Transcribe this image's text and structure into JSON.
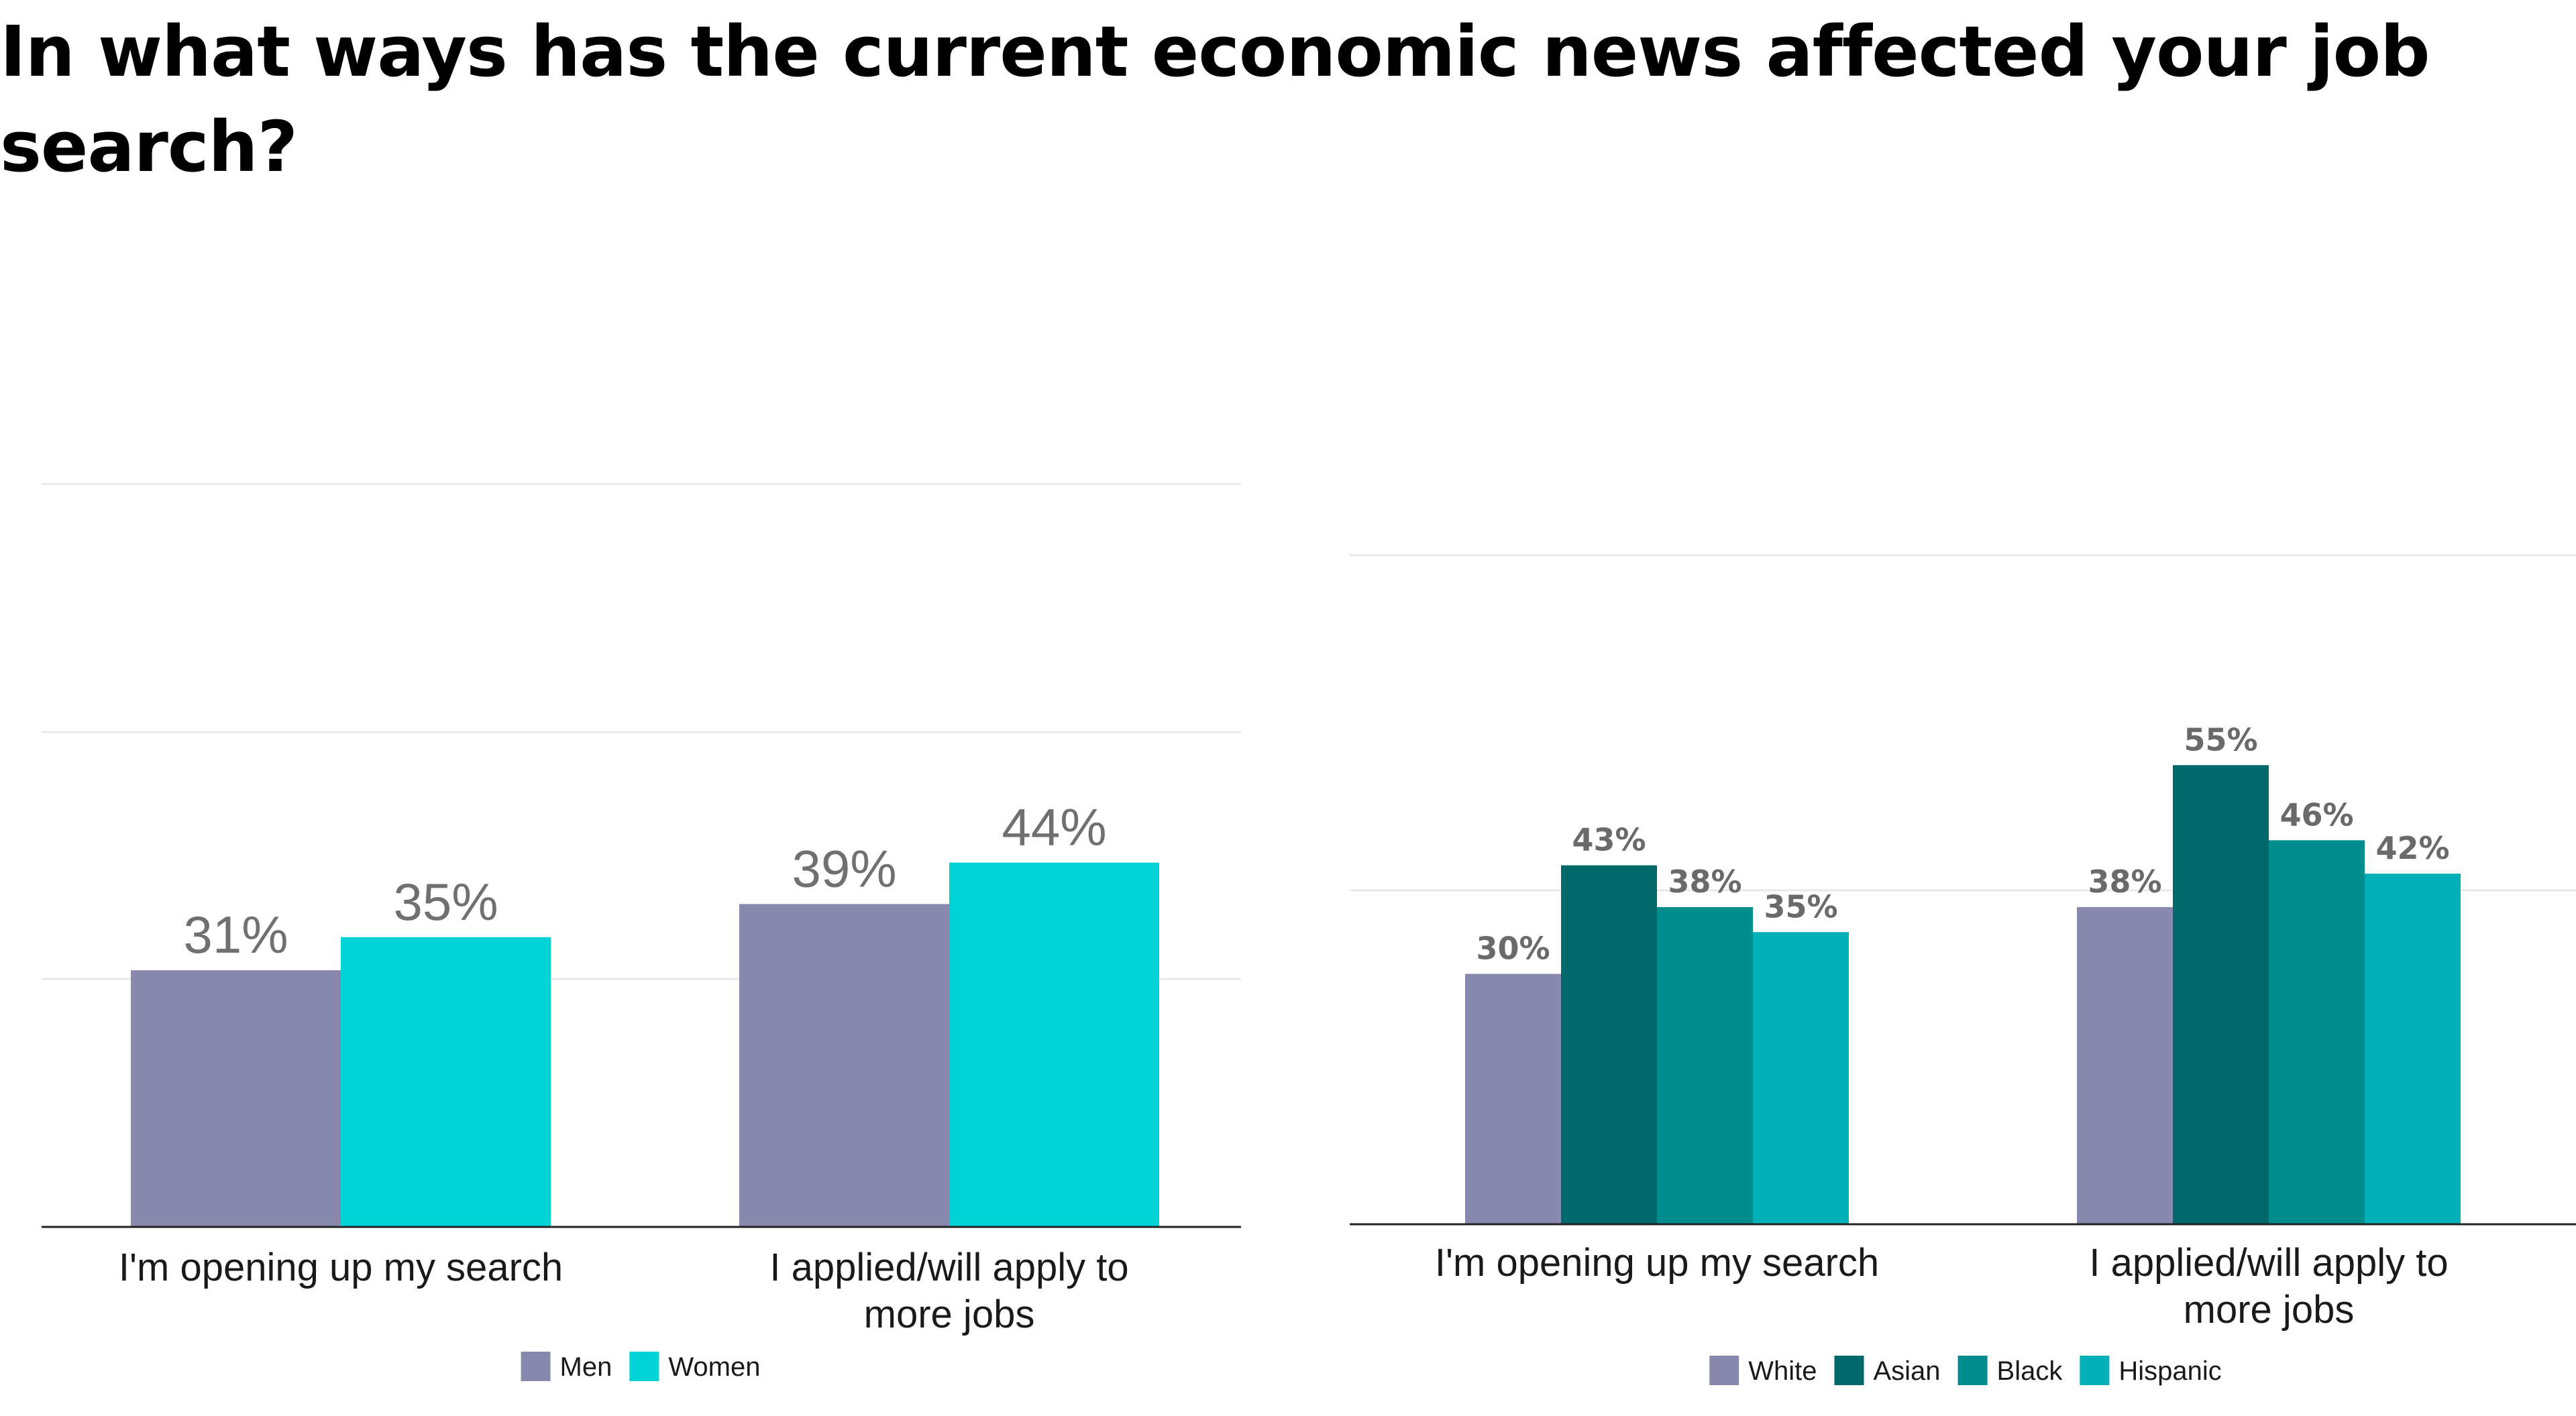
{
  "title": "In what ways has the current economic news affected your job search?",
  "chart_data": [
    {
      "type": "bar",
      "title": "",
      "categories": [
        "I'm opening up my search",
        "I applied/will apply to more jobs"
      ],
      "series": [
        {
          "name": "Men",
          "color": "#8889ad",
          "values": [
            31,
            39
          ],
          "labels": [
            "31%",
            "39%"
          ]
        },
        {
          "name": "Women",
          "color": "#00d3d6",
          "values": [
            35,
            44
          ],
          "labels": [
            "35%",
            "44%"
          ]
        }
      ],
      "ylim": [
        0,
        60
      ],
      "grid": true,
      "legend": "bottom-center"
    },
    {
      "type": "bar",
      "title": "",
      "categories": [
        "I'm opening up my search",
        "I applied/will apply to more jobs"
      ],
      "series": [
        {
          "name": "White",
          "color": "#8889ad",
          "values": [
            30,
            38
          ],
          "labels": [
            "30%",
            "38%"
          ]
        },
        {
          "name": "Asian",
          "color": "#006868",
          "values": [
            43,
            55
          ],
          "labels": [
            "43%",
            "55%"
          ]
        },
        {
          "name": "Black",
          "color": "#008d8d",
          "values": [
            38,
            46
          ],
          "labels": [
            "38%",
            "46%"
          ]
        },
        {
          "name": "Hispanic",
          "color": "#00b0b6",
          "values": [
            35,
            42
          ],
          "labels": [
            "35%",
            "42%"
          ]
        }
      ],
      "ylim": [
        0,
        60
      ],
      "grid": true,
      "legend": "bottom-center"
    }
  ]
}
